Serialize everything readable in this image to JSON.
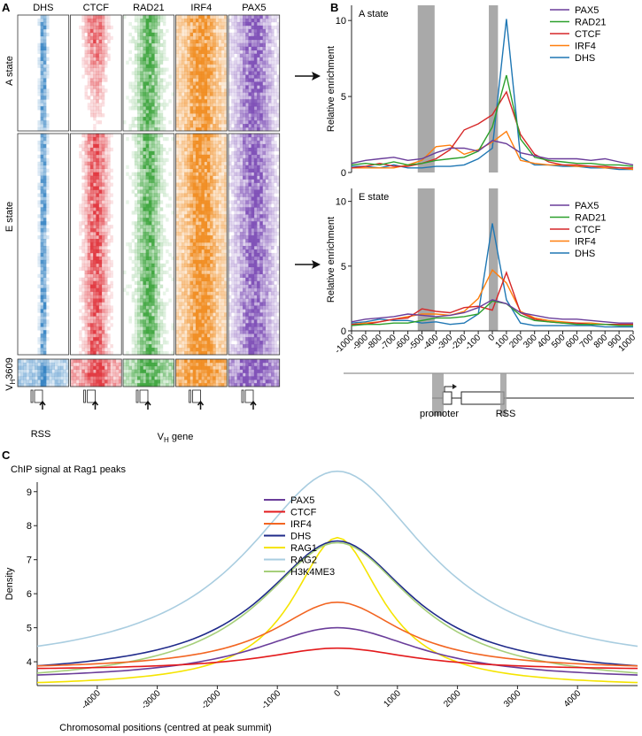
{
  "panels": {
    "a": {
      "letter": "A",
      "tracks": [
        "DHS",
        "CTCF",
        "RAD21",
        "IRF4",
        "PAX5"
      ],
      "track_colors": [
        "#2f7fc1",
        "#e0323a",
        "#3aa33a",
        "#f08a1c",
        "#7b4bb5"
      ],
      "row_labels": {
        "a_state": "A state",
        "e_state": "E state",
        "vh": "V",
        "vh_sub": "H",
        "vh_num": "3609"
      },
      "footer": {
        "rss": "RSS",
        "vh_gene": "V",
        "vh_gene_sub": "H",
        "vh_gene_suffix": " gene"
      }
    },
    "b": {
      "letter": "B"
    },
    "c": {
      "letter": "C"
    }
  },
  "chart_data": [
    {
      "type": "line",
      "title": "A state",
      "ylabel": "Relative enrichment",
      "xlim": [
        -1000,
        1000
      ],
      "ylim": [
        0,
        11
      ],
      "yticks": [
        0,
        5,
        10
      ],
      "x": [
        -1000,
        -900,
        -800,
        -700,
        -600,
        -500,
        -400,
        -300,
        -200,
        -100,
        0,
        100,
        200,
        300,
        400,
        500,
        600,
        700,
        800,
        900,
        1000
      ],
      "shaded": [
        "promoter",
        "RSS"
      ],
      "series": [
        {
          "name": "PAX5",
          "color": "#6a3d9a",
          "values": [
            0.6,
            0.8,
            0.9,
            1.0,
            0.8,
            0.9,
            1.3,
            1.6,
            1.6,
            1.4,
            2.1,
            1.9,
            1.3,
            1.1,
            0.9,
            0.9,
            0.9,
            0.8,
            0.9,
            0.7,
            0.5
          ]
        },
        {
          "name": "RAD21",
          "color": "#2ca02c",
          "values": [
            0.5,
            0.6,
            0.5,
            0.7,
            0.5,
            0.6,
            0.8,
            0.9,
            1.0,
            1.4,
            3.0,
            6.4,
            2.2,
            1.0,
            0.8,
            0.7,
            0.6,
            0.6,
            0.5,
            0.5,
            0.4
          ]
        },
        {
          "name": "CTCF",
          "color": "#d62728",
          "values": [
            0.3,
            0.4,
            0.6,
            0.4,
            0.4,
            0.6,
            0.9,
            1.5,
            2.8,
            3.2,
            3.8,
            5.3,
            2.5,
            1.2,
            0.7,
            0.5,
            0.5,
            0.4,
            0.4,
            0.3,
            0.3
          ]
        },
        {
          "name": "IRF4",
          "color": "#ff7f0e",
          "values": [
            0.3,
            0.3,
            0.3,
            0.3,
            0.5,
            0.8,
            1.7,
            1.8,
            1.2,
            1.5,
            2.0,
            2.7,
            0.8,
            0.6,
            0.5,
            0.5,
            0.4,
            0.4,
            0.3,
            0.3,
            0.2
          ]
        },
        {
          "name": "DHS",
          "color": "#1f77b4",
          "values": [
            0.4,
            0.4,
            0.3,
            0.5,
            0.3,
            0.3,
            0.4,
            0.4,
            0.5,
            0.9,
            1.6,
            10.1,
            1.0,
            0.5,
            0.5,
            0.4,
            0.4,
            0.3,
            0.3,
            0.2,
            0.2
          ]
        }
      ]
    },
    {
      "type": "line",
      "title": "E state",
      "ylabel": "Relative enrichment",
      "xlabel": "",
      "xlim": [
        -1000,
        1000
      ],
      "ylim": [
        0,
        11
      ],
      "yticks": [
        0,
        5,
        10
      ],
      "x": [
        -1000,
        -900,
        -800,
        -700,
        -600,
        -500,
        -400,
        -300,
        -200,
        -100,
        0,
        100,
        200,
        300,
        400,
        500,
        600,
        700,
        800,
        900,
        1000
      ],
      "xticks": [
        "-1000",
        "-900",
        "-800",
        "-700",
        "-600",
        "-500",
        "-400",
        "-300",
        "-200",
        "-100",
        "0",
        "100",
        "200",
        "300",
        "400",
        "500",
        "600",
        "700",
        "800",
        "900",
        "1000"
      ],
      "shaded": [
        "promoter",
        "RSS"
      ],
      "series": [
        {
          "name": "PAX5",
          "color": "#6a3d9a",
          "values": [
            0.7,
            0.9,
            1.0,
            1.1,
            1.3,
            1.2,
            1.1,
            1.2,
            1.4,
            1.8,
            2.4,
            2.1,
            1.4,
            1.2,
            1.0,
            0.9,
            0.9,
            0.8,
            0.7,
            0.6,
            0.6
          ]
        },
        {
          "name": "RAD21",
          "color": "#2ca02c",
          "values": [
            0.4,
            0.5,
            0.5,
            0.6,
            0.6,
            0.8,
            1.0,
            1.0,
            1.1,
            1.3,
            2.3,
            2.1,
            1.2,
            0.8,
            0.7,
            0.6,
            0.5,
            0.5,
            0.5,
            0.4,
            0.4
          ]
        },
        {
          "name": "CTCF",
          "color": "#d62728",
          "values": [
            0.5,
            0.5,
            0.7,
            0.9,
            1.0,
            1.7,
            1.5,
            1.4,
            1.8,
            1.9,
            1.6,
            4.5,
            1.4,
            0.9,
            0.7,
            0.6,
            0.6,
            0.5,
            0.5,
            0.5,
            0.5
          ]
        },
        {
          "name": "IRF4",
          "color": "#ff7f0e",
          "values": [
            0.5,
            0.6,
            0.7,
            0.9,
            1.1,
            1.3,
            1.3,
            1.2,
            1.5,
            2.5,
            4.7,
            3.7,
            1.5,
            1.0,
            0.8,
            0.7,
            0.6,
            0.6,
            0.5,
            0.5,
            0.5
          ]
        },
        {
          "name": "DHS",
          "color": "#1f77b4",
          "values": [
            0.6,
            0.7,
            0.9,
            0.8,
            0.8,
            0.6,
            0.7,
            0.5,
            0.6,
            1.3,
            8.3,
            2.4,
            0.6,
            0.4,
            0.4,
            0.4,
            0.4,
            0.4,
            0.3,
            0.3,
            0.3
          ]
        }
      ]
    },
    {
      "type": "line",
      "title": "ChIP signal at Rag1 peaks",
      "xlabel": "Chromosomal positions (centred at peak summit)",
      "ylabel": "Density",
      "xlim": [
        -5000,
        5000
      ],
      "ylim": [
        3.3,
        9.8
      ],
      "xticks": [
        -4000,
        -3000,
        -2000,
        -1000,
        0,
        1000,
        2000,
        3000,
        4000
      ],
      "yticks": [
        4,
        5,
        6,
        7,
        8,
        9
      ],
      "series": [
        {
          "name": "PAX5",
          "color": "#6a3d9a",
          "peak": 5.0,
          "base": 3.45,
          "width": 1700
        },
        {
          "name": "CTCF",
          "color": "#e31a1c",
          "peak": 4.4,
          "base": 3.75,
          "width": 1500
        },
        {
          "name": "IRF4",
          "color": "#f26522",
          "peak": 5.75,
          "base": 3.75,
          "width": 1300
        },
        {
          "name": "DHS",
          "color": "#1f2a8a",
          "peak": 7.55,
          "base": 3.55,
          "width": 1500
        },
        {
          "name": "RAG1",
          "color": "#f5e400",
          "peak": 7.65,
          "base": 3.25,
          "width": 900
        },
        {
          "name": "RAG2",
          "color": "#a9cde0",
          "peak": 9.6,
          "base": 3.75,
          "width": 1850
        },
        {
          "name": "H3K4ME3",
          "color": "#a6cf7a",
          "peak": 7.5,
          "base": 3.3,
          "width": 1550
        }
      ]
    }
  ],
  "diagram": {
    "promoter": "promoter",
    "rss": "RSS"
  },
  "arrows": [
    "arrow-right",
    "arrow-right"
  ]
}
